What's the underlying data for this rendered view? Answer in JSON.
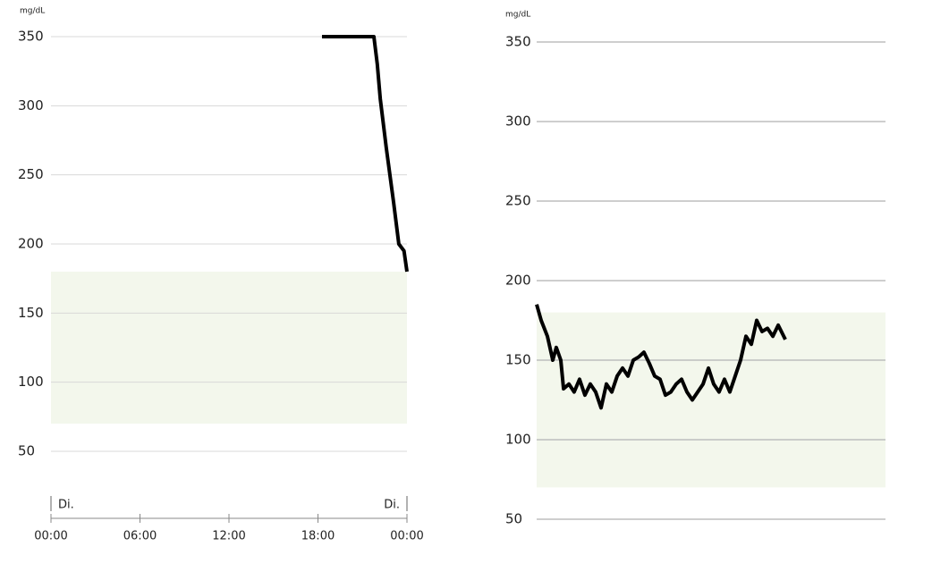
{
  "chart_data": [
    {
      "type": "line",
      "unit_label": "mg/dL",
      "ylim": [
        50,
        350
      ],
      "yticks": [
        50,
        100,
        150,
        200,
        250,
        300,
        350
      ],
      "grid": true,
      "xlim": [
        0,
        24
      ],
      "xticks": [
        {
          "value": 0,
          "label": "00:00"
        },
        {
          "value": 6,
          "label": "06:00"
        },
        {
          "value": 12,
          "label": "12:00"
        },
        {
          "value": 18,
          "label": "18:00"
        },
        {
          "value": 24,
          "label": "00:00"
        }
      ],
      "day_labels": [
        {
          "value": 0,
          "label": "Di."
        },
        {
          "value": 24,
          "label": "Di."
        }
      ],
      "target_range": [
        70,
        180
      ],
      "band_color": "#f3f7ec",
      "x": [
        18.27,
        21.77,
        22.0,
        22.2,
        22.6,
        23.1,
        23.45,
        23.8,
        24
      ],
      "series": [
        {
          "color": "#000000",
          "values": [
            350,
            350,
            330,
            305,
            270,
            230,
            200,
            195,
            180
          ]
        }
      ]
    },
    {
      "type": "line",
      "unit_label": "mg/dL",
      "ylim": [
        50,
        350
      ],
      "yticks": [
        50,
        100,
        150,
        200,
        250,
        300,
        350
      ],
      "grid": true,
      "xlim": [
        0,
        24
      ],
      "target_range": [
        70,
        180
      ],
      "band_color": "#f3f7ec",
      "x": [
        0,
        0.31,
        0.74,
        1.11,
        1.35,
        1.66,
        1.85,
        2.22,
        2.58,
        2.95,
        3.32,
        3.69,
        4.06,
        4.43,
        4.8,
        5.17,
        5.54,
        5.91,
        6.28,
        6.65,
        7.02,
        7.38,
        7.75,
        8.12,
        8.49,
        8.86,
        9.23,
        9.6,
        9.97,
        10.34,
        10.71,
        11.08,
        11.45,
        11.82,
        12.18,
        12.55,
        12.92,
        13.29,
        13.66,
        14.03,
        14.4,
        14.77,
        15.14,
        15.51,
        15.88,
        16.25,
        16.62,
        17.11
      ],
      "series": [
        {
          "color": "#000000",
          "values": [
            185,
            175,
            165,
            150,
            158,
            150,
            132,
            135,
            130,
            138,
            128,
            135,
            130,
            120,
            135,
            130,
            140,
            145,
            140,
            150,
            152,
            155,
            148,
            140,
            138,
            128,
            130,
            135,
            138,
            130,
            125,
            130,
            135,
            145,
            135,
            130,
            138,
            130,
            140,
            150,
            165,
            160,
            175,
            168,
            170,
            165,
            172,
            163
          ]
        }
      ]
    }
  ]
}
